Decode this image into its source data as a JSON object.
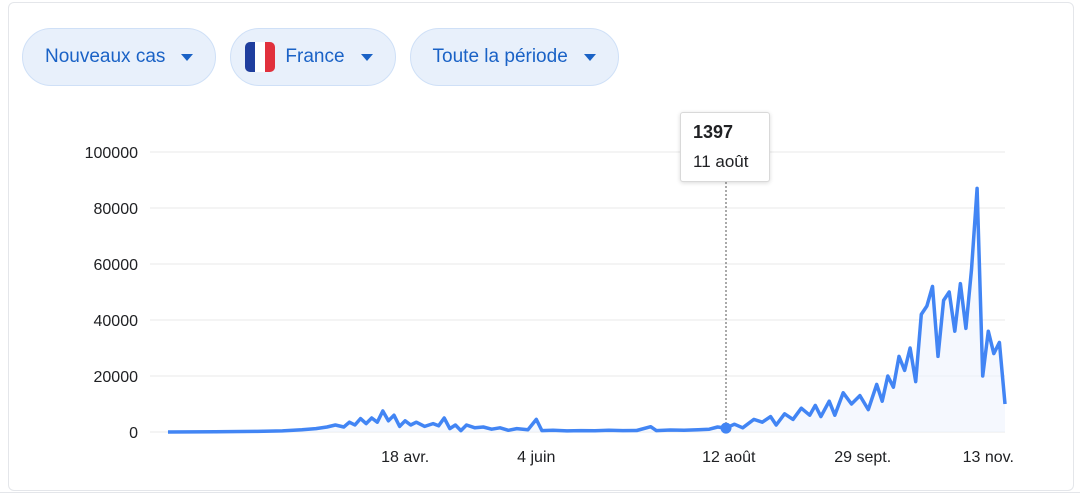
{
  "filters": [
    {
      "label": "Nouveaux cas"
    },
    {
      "label": "France",
      "flag_colors": [
        "#1f3e9e",
        "#ffffff",
        "#e1303c"
      ]
    },
    {
      "label": "Toute la période"
    }
  ],
  "colors": {
    "line": "#4285f4",
    "area": "#eef3fd",
    "grid": "#e8e8e8",
    "accent": "#1a62c6",
    "chip_bg": "#e8f0fb"
  },
  "tooltip": {
    "value": "1397",
    "date": "11 août"
  },
  "chart_data": {
    "type": "line",
    "title": "",
    "xlabel": "",
    "ylabel": "",
    "ylim": [
      0,
      100000
    ],
    "yticks": [
      {
        "value": 0,
        "label": "0"
      },
      {
        "value": 20000,
        "label": "20000"
      },
      {
        "value": 40000,
        "label": "40000"
      },
      {
        "value": 60000,
        "label": "60000"
      },
      {
        "value": 80000,
        "label": "80000"
      },
      {
        "value": 100000,
        "label": "100000"
      }
    ],
    "xlim": [
      "2020-01-24",
      "2020-11-19"
    ],
    "xticks": [
      {
        "date": "2020-04-18",
        "label": "18 avr."
      },
      {
        "date": "2020-06-04",
        "label": "4 juin"
      },
      {
        "date": "2020-08-12",
        "label": "12 août"
      },
      {
        "date": "2020-09-29",
        "label": "29 sept."
      },
      {
        "date": "2020-11-13",
        "label": "13 nov."
      }
    ],
    "highlight": {
      "date": "2020-08-11",
      "value": 1397
    },
    "series": [
      {
        "points": [
          [
            "2020-01-24",
            0
          ],
          [
            "2020-02-10",
            100
          ],
          [
            "2020-02-25",
            200
          ],
          [
            "2020-03-05",
            400
          ],
          [
            "2020-03-12",
            800
          ],
          [
            "2020-03-17",
            1200
          ],
          [
            "2020-03-21",
            1800
          ],
          [
            "2020-03-24",
            2500
          ],
          [
            "2020-03-27",
            1800
          ],
          [
            "2020-03-29",
            3500
          ],
          [
            "2020-03-31",
            2500
          ],
          [
            "2020-04-02",
            4800
          ],
          [
            "2020-04-04",
            3000
          ],
          [
            "2020-04-06",
            5000
          ],
          [
            "2020-04-08",
            3500
          ],
          [
            "2020-04-10",
            7500
          ],
          [
            "2020-04-12",
            4000
          ],
          [
            "2020-04-14",
            6000
          ],
          [
            "2020-04-16",
            2000
          ],
          [
            "2020-04-18",
            4000
          ],
          [
            "2020-04-20",
            2500
          ],
          [
            "2020-04-22",
            3500
          ],
          [
            "2020-04-25",
            2000
          ],
          [
            "2020-04-28",
            3000
          ],
          [
            "2020-04-30",
            2200
          ],
          [
            "2020-05-02",
            5000
          ],
          [
            "2020-05-04",
            1200
          ],
          [
            "2020-05-06",
            2500
          ],
          [
            "2020-05-08",
            500
          ],
          [
            "2020-05-10",
            2500
          ],
          [
            "2020-05-13",
            1500
          ],
          [
            "2020-05-16",
            1800
          ],
          [
            "2020-05-19",
            1000
          ],
          [
            "2020-05-22",
            1500
          ],
          [
            "2020-05-25",
            600
          ],
          [
            "2020-05-28",
            1200
          ],
          [
            "2020-06-01",
            800
          ],
          [
            "2020-06-04",
            4500
          ],
          [
            "2020-06-06",
            500
          ],
          [
            "2020-06-10",
            600
          ],
          [
            "2020-06-15",
            400
          ],
          [
            "2020-06-20",
            500
          ],
          [
            "2020-06-25",
            450
          ],
          [
            "2020-06-30",
            600
          ],
          [
            "2020-07-05",
            500
          ],
          [
            "2020-07-10",
            550
          ],
          [
            "2020-07-15",
            1900
          ],
          [
            "2020-07-17",
            500
          ],
          [
            "2020-07-22",
            700
          ],
          [
            "2020-07-27",
            600
          ],
          [
            "2020-08-01",
            800
          ],
          [
            "2020-08-05",
            1000
          ],
          [
            "2020-08-08",
            1800
          ],
          [
            "2020-08-11",
            1397
          ],
          [
            "2020-08-14",
            2800
          ],
          [
            "2020-08-17",
            1500
          ],
          [
            "2020-08-21",
            4500
          ],
          [
            "2020-08-24",
            3500
          ],
          [
            "2020-08-27",
            5500
          ],
          [
            "2020-08-29",
            2500
          ],
          [
            "2020-09-01",
            6500
          ],
          [
            "2020-09-04",
            4500
          ],
          [
            "2020-09-07",
            8500
          ],
          [
            "2020-09-10",
            6000
          ],
          [
            "2020-09-12",
            9500
          ],
          [
            "2020-09-14",
            5500
          ],
          [
            "2020-09-17",
            11000
          ],
          [
            "2020-09-19",
            6000
          ],
          [
            "2020-09-22",
            14000
          ],
          [
            "2020-09-25",
            10000
          ],
          [
            "2020-09-28",
            13000
          ],
          [
            "2020-10-01",
            8000
          ],
          [
            "2020-10-04",
            17000
          ],
          [
            "2020-10-06",
            11000
          ],
          [
            "2020-10-08",
            20000
          ],
          [
            "2020-10-10",
            16000
          ],
          [
            "2020-10-12",
            27000
          ],
          [
            "2020-10-14",
            22000
          ],
          [
            "2020-10-16",
            30000
          ],
          [
            "2020-10-18",
            18000
          ],
          [
            "2020-10-20",
            42000
          ],
          [
            "2020-10-22",
            45000
          ],
          [
            "2020-10-24",
            52000
          ],
          [
            "2020-10-26",
            27000
          ],
          [
            "2020-10-28",
            47000
          ],
          [
            "2020-10-30",
            50000
          ],
          [
            "2020-11-01",
            36000
          ],
          [
            "2020-11-03",
            53000
          ],
          [
            "2020-11-05",
            37000
          ],
          [
            "2020-11-07",
            58000
          ],
          [
            "2020-11-09",
            87000
          ],
          [
            "2020-11-11",
            20000
          ],
          [
            "2020-11-13",
            36000
          ],
          [
            "2020-11-15",
            28000
          ],
          [
            "2020-11-17",
            32000
          ],
          [
            "2020-11-19",
            10000
          ]
        ]
      }
    ]
  }
}
